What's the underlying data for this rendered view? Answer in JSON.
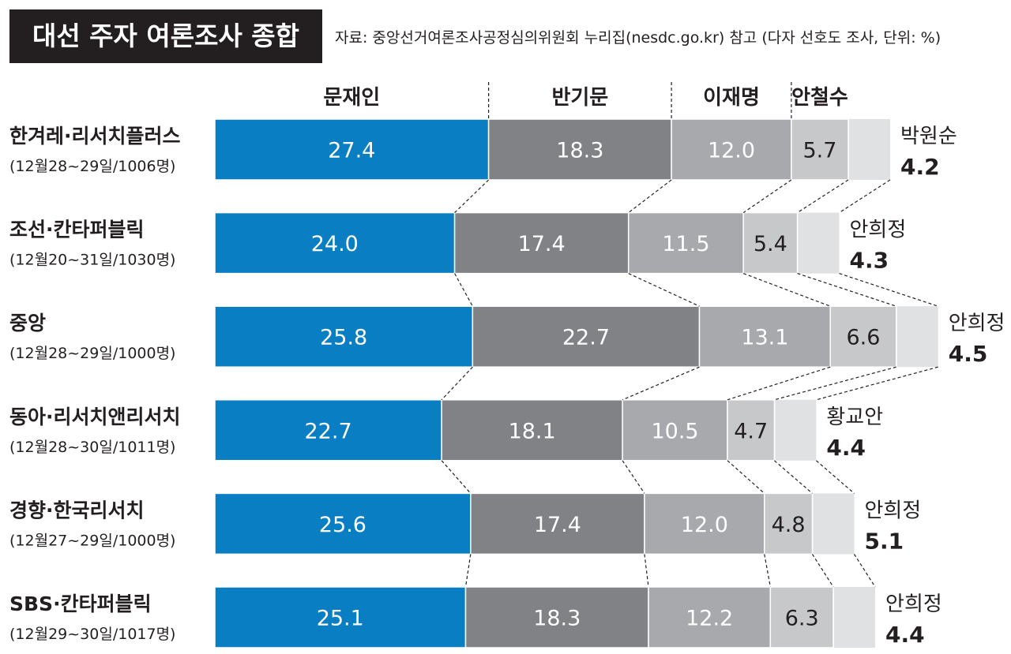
{
  "header": {
    "title": "대선 주자 여론조사 종합",
    "source": "자료: 중앙선거여론조사공정심의위원회 누리집(nesdc.go.kr) 참고 (다자 선호도 조사, 단위: %)"
  },
  "chart_data": {
    "type": "bar",
    "stacked": true,
    "orientation": "horizontal",
    "title": "대선 주자 여론조사 종합",
    "unit": "%",
    "candidates": [
      "문재인",
      "반기문",
      "이재명",
      "안철수"
    ],
    "colors": {
      "문재인": "#0a7ec2",
      "반기문": "#808285",
      "이재명": "#a7a9ac",
      "안철수": "#c7c8ca",
      "other": "#e0e1e2",
      "connector": "#231f20"
    },
    "rows": [
      {
        "pollster": "한겨레·리서치플러스",
        "period": "(12월28~29일/1006명)",
        "values": [
          27.4,
          18.3,
          12.0,
          5.7
        ],
        "other_name": "박원순",
        "other_value": 4.2
      },
      {
        "pollster": "조선·칸타퍼블릭",
        "period": "(12월20~31일/1030명)",
        "values": [
          24.0,
          17.4,
          11.5,
          5.4
        ],
        "other_name": "안희정",
        "other_value": 4.3
      },
      {
        "pollster": "중앙",
        "period": "(12월28~29일/1000명)",
        "values": [
          25.8,
          22.7,
          13.1,
          6.6
        ],
        "other_name": "안희정",
        "other_value": 4.5
      },
      {
        "pollster": "동아·리서치앤리서치",
        "period": "(12월28~30일/1011명)",
        "values": [
          22.7,
          18.1,
          10.5,
          4.7
        ],
        "other_name": "황교안",
        "other_value": 4.4
      },
      {
        "pollster": "경향·한국리서치",
        "period": "(12월27~29일/1000명)",
        "values": [
          25.6,
          17.4,
          12.0,
          4.8
        ],
        "other_name": "안희정",
        "other_value": 5.1
      },
      {
        "pollster": "SBS·칸타퍼블릭",
        "period": "(12월29~30일/1017명)",
        "values": [
          25.1,
          18.3,
          12.2,
          6.3
        ],
        "other_name": "안희정",
        "other_value": 4.4
      }
    ]
  }
}
